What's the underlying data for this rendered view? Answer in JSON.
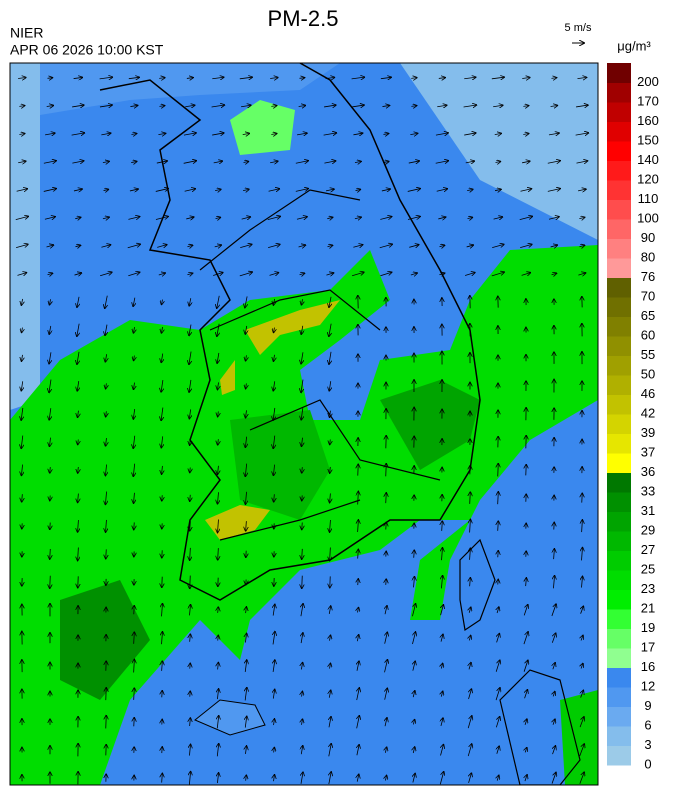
{
  "header": {
    "title": "PM-2.5",
    "agency": "NIER",
    "timestamp": "APR 06 2026 10:00 KST",
    "wind_scale": "5 m/s"
  },
  "colorbar": {
    "unit": "μg/m³",
    "levels": [
      0,
      3,
      6,
      9,
      12,
      16,
      17,
      19,
      21,
      23,
      25,
      27,
      29,
      31,
      33,
      36,
      37,
      39,
      42,
      46,
      50,
      55,
      60,
      65,
      70,
      76,
      80,
      90,
      100,
      110,
      120,
      140,
      150,
      160,
      170,
      200
    ],
    "colors": [
      "#9ccbe8",
      "#84bdec",
      "#6aaaf0",
      "#5098f0",
      "#3a88ee",
      "#90ff90",
      "#66ff66",
      "#33ff33",
      "#00ee00",
      "#00dd00",
      "#00cc00",
      "#00b800",
      "#00a400",
      "#009000",
      "#007800",
      "#ffff00",
      "#e6e600",
      "#d4d400",
      "#c2c200",
      "#b0b000",
      "#a0a000",
      "#909000",
      "#808000",
      "#707000",
      "#606000",
      "#ff9999",
      "#ff8080",
      "#ff6666",
      "#ff4d4d",
      "#ff3333",
      "#ff1a1a",
      "#ff0000",
      "#e00000",
      "#c00000",
      "#a00000",
      "#700000"
    ]
  }
}
